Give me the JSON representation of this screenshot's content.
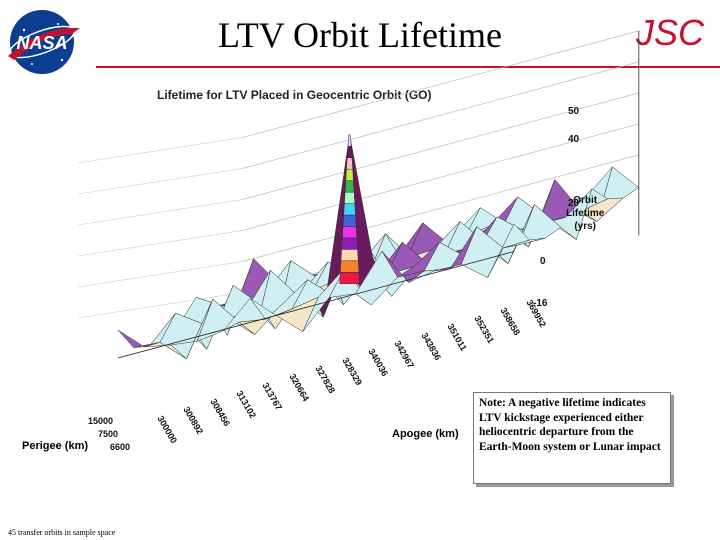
{
  "header": {
    "title": "LTV Orbit Lifetime",
    "org_label": "JSC",
    "logo_text": "NASA"
  },
  "chart_data": {
    "type": "surface",
    "title": "Lifetime for LTV Placed in Geocentric Orbit (GO)",
    "z_axis_title_lines": [
      "Orbit",
      "Lifetime",
      "(yrs)"
    ],
    "z_ticks": [
      50,
      40,
      20,
      0,
      -16
    ],
    "x_axis_title": "Apogee (km)",
    "y_axis_title": "Perigee (km)",
    "x_tick_labels": [
      "300000",
      "300892",
      "308456",
      "313102",
      "313767",
      "320664",
      "327828",
      "328329",
      "340036",
      "342967",
      "343836",
      "351011",
      "352351",
      "358658",
      "369952"
    ],
    "y_tick_labels": [
      "15000",
      "7500",
      "6600"
    ],
    "peak_lifetime_yrs": 48,
    "colors": {
      "surface": "#cfeff3",
      "spike": "#6a1b5f",
      "grid": "#444444",
      "title_red": "#c8102e"
    }
  },
  "note": {
    "text": "Note: A negative lifetime indicates LTV kickstage experienced either heliocentric departure from the Earth-Moon system or Lunar impact"
  },
  "footer": {
    "text": "45 transfer orbits in sample space"
  }
}
